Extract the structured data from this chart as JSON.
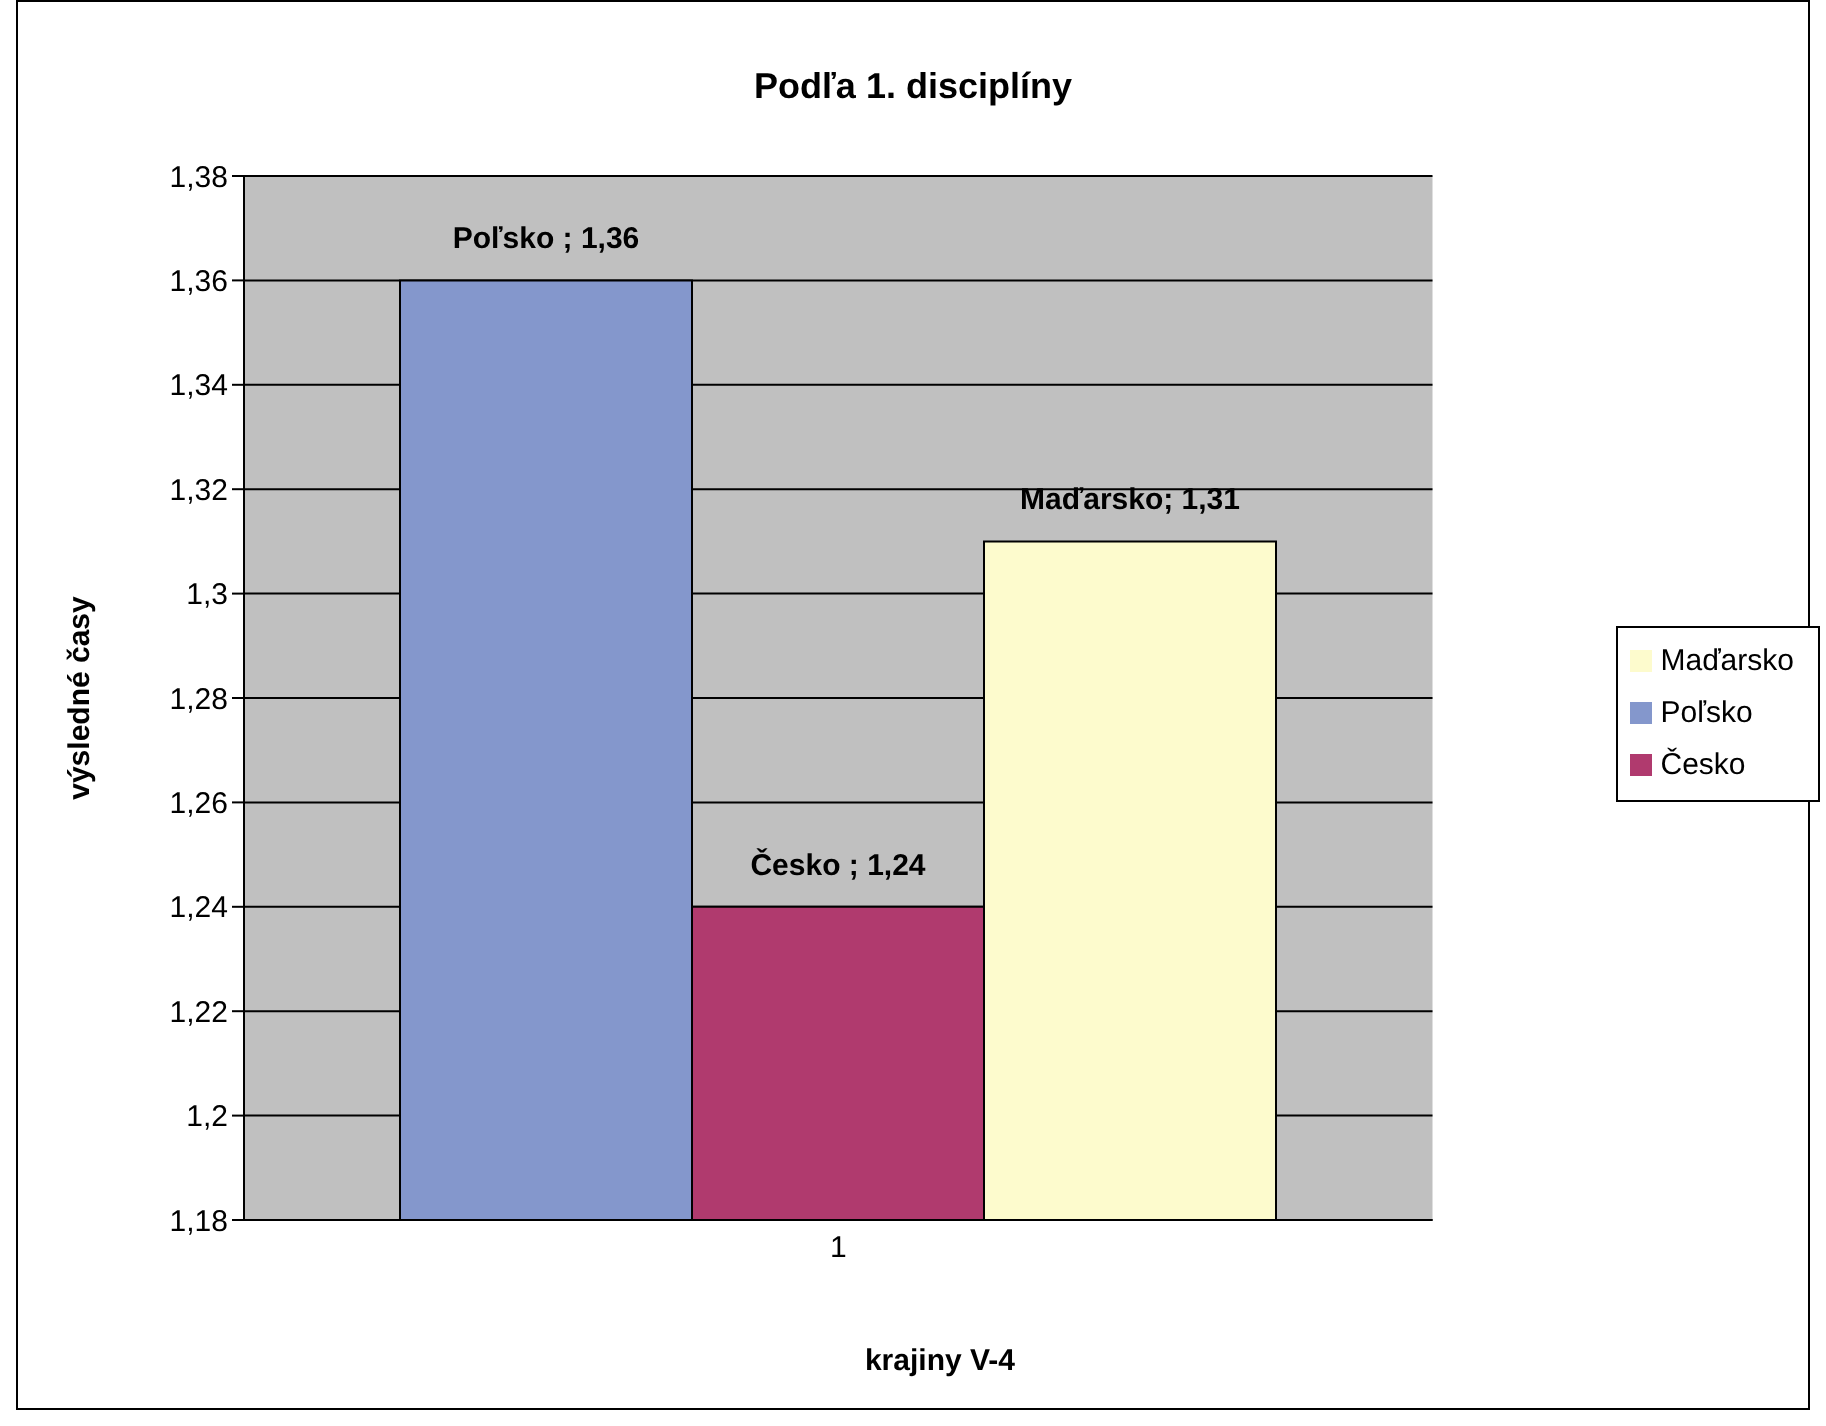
{
  "chart_data": {
    "type": "bar",
    "title": "Podľa 1. disciplíny",
    "xlabel": "krajiny V-4",
    "ylabel": "výsledné časy",
    "categories": [
      "1"
    ],
    "series": [
      {
        "name": "Poľsko",
        "color": "#8497cc",
        "values": [
          1.36
        ],
        "value_labels": [
          "Poľsko ; 1,36"
        ]
      },
      {
        "name": "Česko",
        "color": "#b03a6e",
        "values": [
          1.24
        ],
        "value_labels": [
          "Česko ; 1,24"
        ]
      },
      {
        "name": "Maďarsko",
        "color": "#fdfbcd",
        "values": [
          1.31
        ],
        "value_labels": [
          "Maďarsko; 1,31"
        ]
      }
    ],
    "ylim": [
      1.18,
      1.38
    ],
    "yticks": [
      {
        "value": 1.18,
        "label": "1,18"
      },
      {
        "value": 1.2,
        "label": "1,2"
      },
      {
        "value": 1.22,
        "label": "1,22"
      },
      {
        "value": 1.24,
        "label": "1,24"
      },
      {
        "value": 1.26,
        "label": "1,26"
      },
      {
        "value": 1.28,
        "label": "1,28"
      },
      {
        "value": 1.3,
        "label": "1,3"
      },
      {
        "value": 1.32,
        "label": "1,32"
      },
      {
        "value": 1.34,
        "label": "1,34"
      },
      {
        "value": 1.36,
        "label": "1,36"
      },
      {
        "value": 1.38,
        "label": "1,38"
      }
    ],
    "grid": "y",
    "legend": "right"
  }
}
